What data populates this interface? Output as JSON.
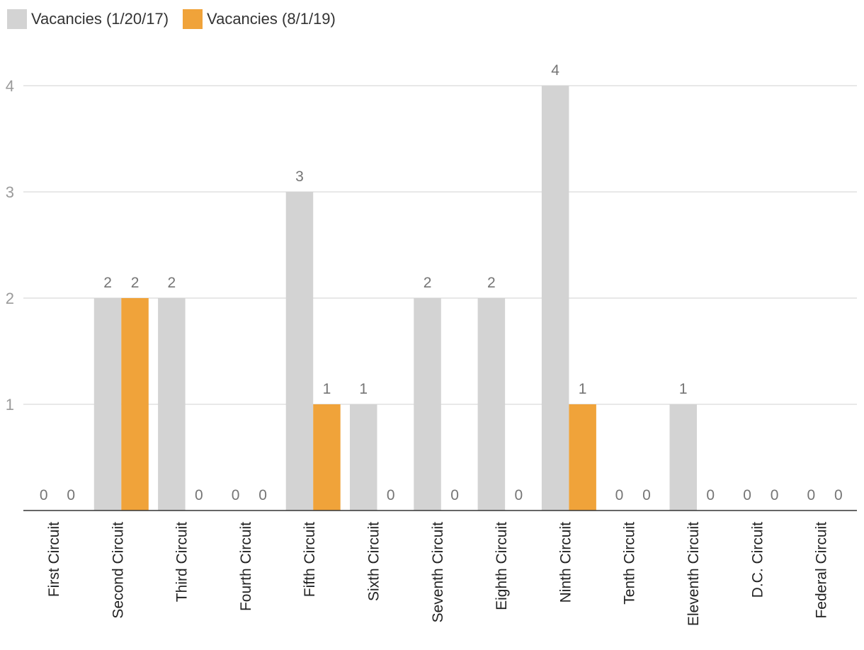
{
  "chart_data": {
    "type": "bar",
    "categories": [
      "First Circuit",
      "Second Circuit",
      "Third Circuit",
      "Fourth Circuit",
      "Fifth Circuit",
      "Sixth Circuit",
      "Seventh Circuit",
      "Eighth Circuit",
      "Ninth Circuit",
      "Tenth Circuit",
      "Eleventh Circuit",
      "D.C. Circuit",
      "Federal Circuit"
    ],
    "series": [
      {
        "name": "Vacancies (1/20/17)",
        "color": "#d3d3d3",
        "values": [
          0,
          2,
          2,
          0,
          3,
          1,
          2,
          2,
          4,
          0,
          1,
          0,
          0
        ]
      },
      {
        "name": "Vacancies (8/1/19)",
        "color": "#f0a33a",
        "values": [
          0,
          2,
          0,
          0,
          1,
          0,
          0,
          0,
          1,
          0,
          0,
          0,
          0
        ]
      }
    ],
    "yticks": [
      1,
      2,
      3,
      4
    ],
    "ylim": [
      0,
      4
    ],
    "grid": true,
    "legend_position": "top-left",
    "data_labels": true,
    "xlabel": "",
    "ylabel": "",
    "title": ""
  }
}
